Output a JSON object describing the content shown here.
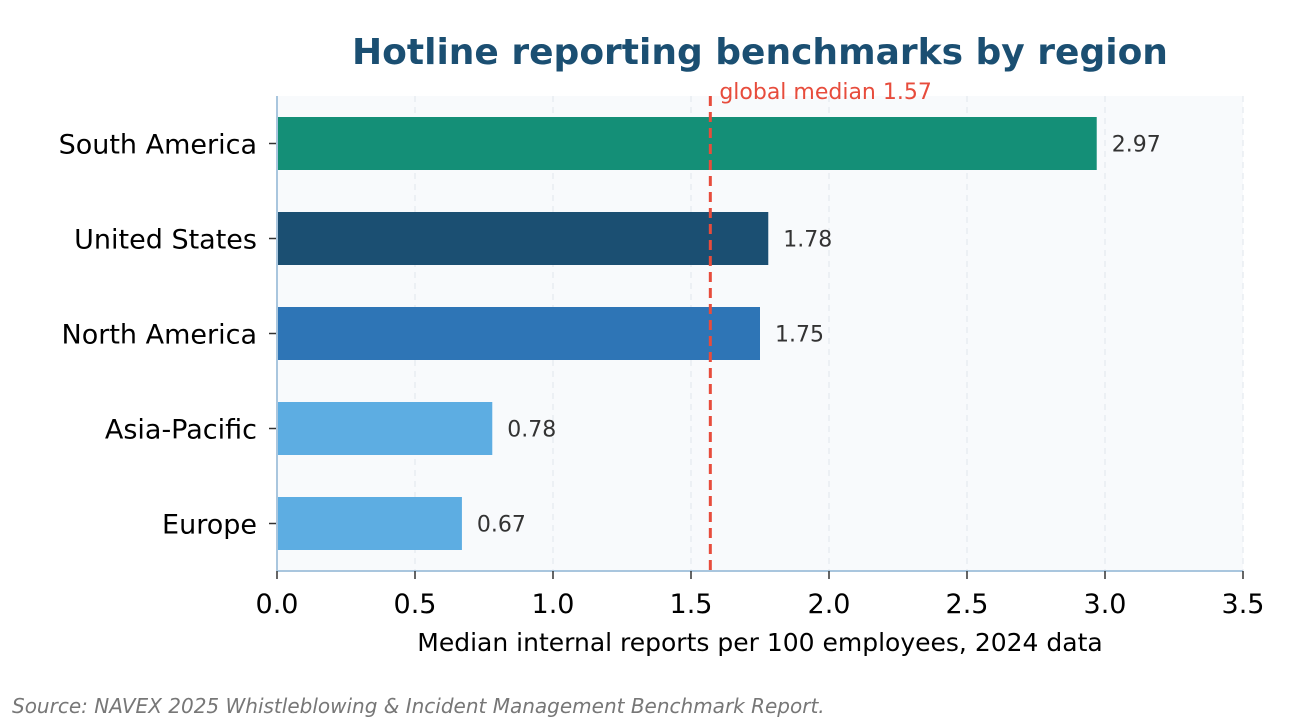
{
  "chart_data": {
    "type": "bar",
    "orientation": "horizontal",
    "title": "Hotline reporting benchmarks by region",
    "xlabel": "Median internal reports per 100 employees, 2024 data",
    "ylabel": "",
    "xlim": [
      0,
      3.5
    ],
    "xticks": [
      "0.0",
      "0.5",
      "1.0",
      "1.5",
      "2.0",
      "2.5",
      "3.0",
      "3.5"
    ],
    "grid": "vertical dashed",
    "categories": [
      "South America",
      "United States",
      "North America",
      "Asia-Pacific",
      "Europe"
    ],
    "values": [
      2.97,
      1.78,
      1.75,
      0.78,
      0.67
    ],
    "value_labels": [
      "2.97",
      "1.78",
      "1.75",
      "0.78",
      "0.67"
    ],
    "bar_colors": [
      "#148f77",
      "#1b4f72",
      "#2e75b6",
      "#5dade2",
      "#5dade2"
    ],
    "reference_line": {
      "value": 1.57,
      "label": "global median 1.57",
      "color": "#e74c3c",
      "style": "dashed"
    },
    "source": "Source: NAVEX 2025 Whistleblowing & Incident Management Benchmark Report."
  },
  "colors": {
    "plot_background": "#f8fafc",
    "axis": "#a9c6de",
    "title": "#1b4f72"
  }
}
